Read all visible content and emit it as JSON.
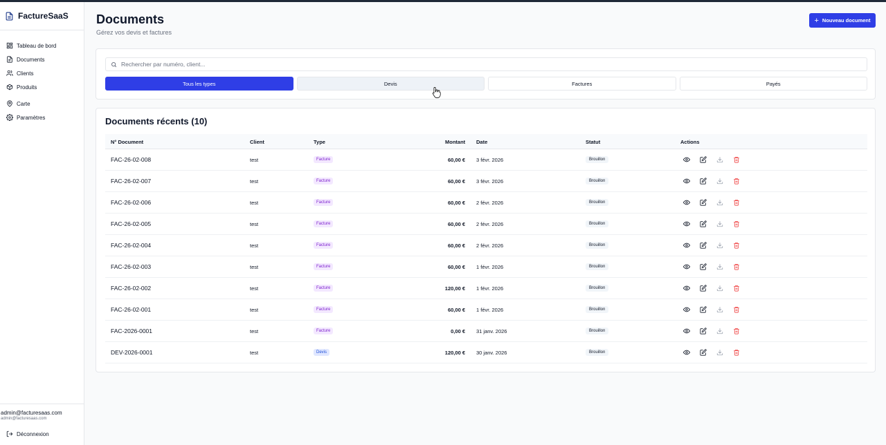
{
  "app": {
    "name": "FactureSaaS"
  },
  "sidebar": {
    "items": [
      {
        "key": "dashboard",
        "label": "Tableau de bord",
        "icon": "dashboard-icon"
      },
      {
        "key": "documents",
        "label": "Documents",
        "icon": "document-icon"
      },
      {
        "key": "clients",
        "label": "Clients",
        "icon": "users-icon"
      },
      {
        "key": "products",
        "label": "Produits",
        "icon": "package-icon"
      },
      {
        "key": "map",
        "label": "Carte",
        "icon": "map-pin-icon"
      },
      {
        "key": "settings",
        "label": "Paramètres",
        "icon": "gear-icon"
      }
    ],
    "user_email": "admin@facturesaas.com",
    "user_sub": "admin@facturesaas.com",
    "logout_label": "Déconnexion"
  },
  "header": {
    "title": "Documents",
    "subtitle": "Gérez vos devis et factures",
    "new_button": "Nouveau document"
  },
  "search": {
    "placeholder": "Rechercher par numéro, client..."
  },
  "filters": [
    "Tous les types",
    "Devis",
    "Factures",
    "Payés"
  ],
  "table": {
    "title": "Documents récents (10)",
    "columns": {
      "number": "N° Document",
      "client": "Client",
      "type": "Type",
      "amount": "Montant",
      "date": "Date",
      "status": "Statut",
      "actions": "Actions"
    },
    "rows": [
      {
        "number": "FAC-26-02-008",
        "client": "test",
        "type": "Facture",
        "amount": "60,00 €",
        "date": "3 févr. 2026",
        "status": "Brouillon"
      },
      {
        "number": "FAC-26-02-007",
        "client": "test",
        "type": "Facture",
        "amount": "60,00 €",
        "date": "3 févr. 2026",
        "status": "Brouillon"
      },
      {
        "number": "FAC-26-02-006",
        "client": "test",
        "type": "Facture",
        "amount": "60,00 €",
        "date": "2 févr. 2026",
        "status": "Brouillon"
      },
      {
        "number": "FAC-26-02-005",
        "client": "test",
        "type": "Facture",
        "amount": "60,00 €",
        "date": "2 févr. 2026",
        "status": "Brouillon"
      },
      {
        "number": "FAC-26-02-004",
        "client": "test",
        "type": "Facture",
        "amount": "60,00 €",
        "date": "2 févr. 2026",
        "status": "Brouillon"
      },
      {
        "number": "FAC-26-02-003",
        "client": "test",
        "type": "Facture",
        "amount": "60,00 €",
        "date": "1 févr. 2026",
        "status": "Brouillon"
      },
      {
        "number": "FAC-26-02-002",
        "client": "test",
        "type": "Facture",
        "amount": "120,00 €",
        "date": "1 févr. 2026",
        "status": "Brouillon"
      },
      {
        "number": "FAC-26-02-001",
        "client": "test",
        "type": "Facture",
        "amount": "60,00 €",
        "date": "1 févr. 2026",
        "status": "Brouillon"
      },
      {
        "number": "FAC-2026-0001",
        "client": "test",
        "type": "Facture",
        "amount": "0,00 €",
        "date": "31 janv. 2026",
        "status": "Brouillon"
      },
      {
        "number": "DEV-2026-0001",
        "client": "test",
        "type": "Devis",
        "amount": "120,00 €",
        "date": "30 janv. 2026",
        "status": "Brouillon"
      }
    ]
  },
  "colors": {
    "accent": "#2f3ee6",
    "delete": "#ef4444",
    "facture_badge": "#7e22ce",
    "devis_badge": "#1d4ed8"
  }
}
